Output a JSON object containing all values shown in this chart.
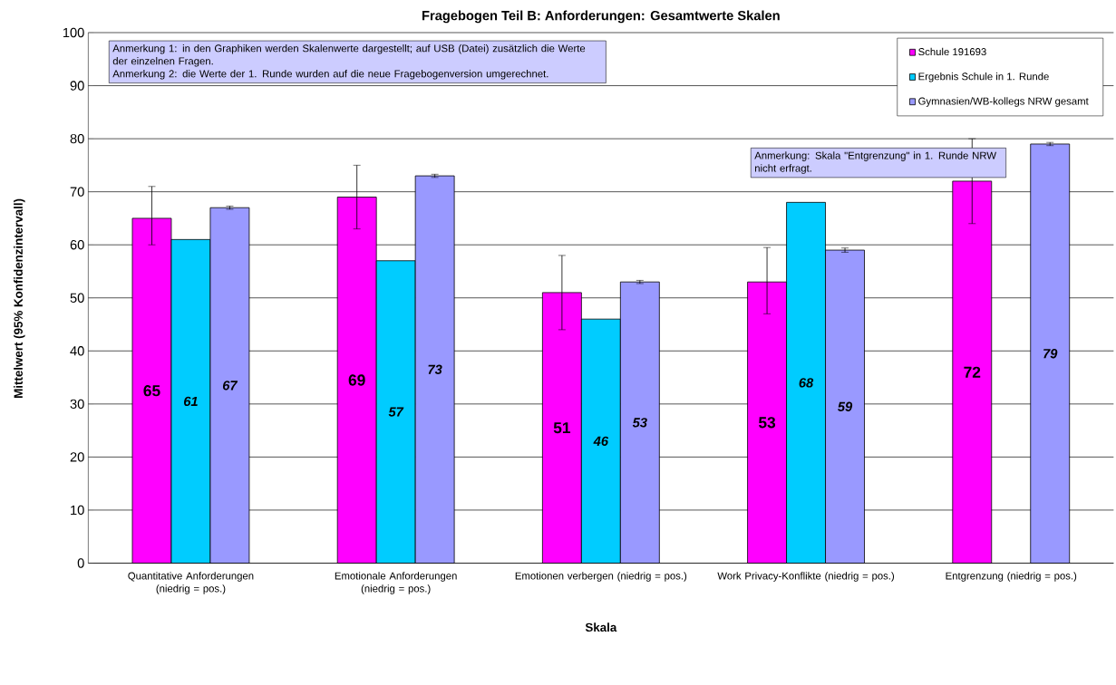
{
  "chart_data": {
    "type": "bar",
    "title": "Fragebogen Teil B: Anforderungen: Gesamtwerte Skalen",
    "xlabel": "Skala",
    "ylabel": "Mittelwert (95% Konfidenzintervall)",
    "categories": [
      "Quantitative Anforderungen (niedrig = pos.)",
      "Emotionale Anforderungen (niedrig = pos.)",
      "Emotionen verbergen (niedrig = pos.)",
      "Work Privacy-Konflikte (niedrig = pos.)",
      "Entgrenzung (niedrig = pos.)"
    ],
    "series": [
      {
        "name": "Schule 191693",
        "color": "#ff00ff",
        "values": [
          65,
          69,
          51,
          53,
          72
        ],
        "errors": [
          [
            60,
            71
          ],
          [
            63,
            75
          ],
          [
            44,
            58
          ],
          [
            47,
            59.5
          ],
          [
            64,
            80
          ]
        ]
      },
      {
        "name": "Ergebnis Schule in 1. Runde",
        "color": "#00ccff",
        "values": [
          61,
          57,
          46,
          68,
          null
        ]
      },
      {
        "name": "Gymnasien/WB-kollegs NRW gesamt",
        "color": "#9999ff",
        "values": [
          67,
          73,
          53,
          59,
          79
        ],
        "errors": [
          0.3,
          0.3,
          0.3,
          0.4,
          0.3
        ]
      }
    ],
    "ylim": [
      0,
      100
    ],
    "yticks": [
      0,
      10,
      20,
      30,
      40,
      50,
      60,
      70,
      80,
      90,
      100
    ],
    "grid": "y",
    "legend": "top right",
    "data_labels": true,
    "annotations": [
      "Anmerkung 1: in den Graphiken werden Skalenwerte dargestellt; auf USB (Datei) zusätzlich die Werte der einzelnen Fragen.",
      "Anmerkung 2: die Werte der 1. Runde wurden auf die neue Fragebogenversion umgerechnet.",
      "Anmerkung: Skala \"Entgrenzung\" in 1. Runde NRW nicht erfragt."
    ]
  }
}
